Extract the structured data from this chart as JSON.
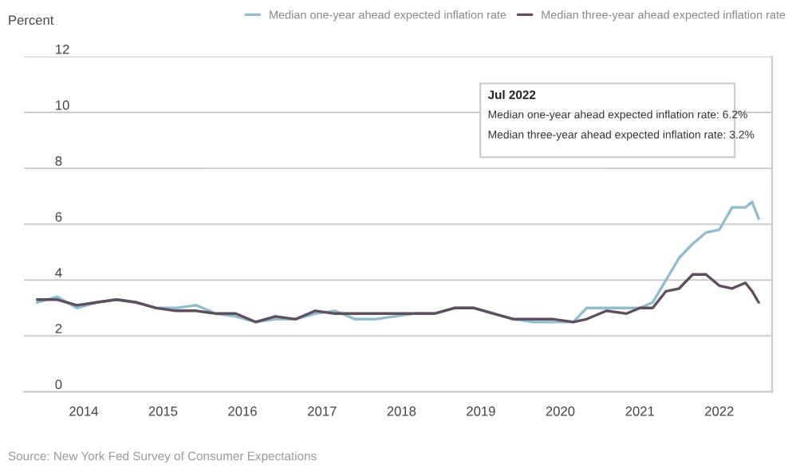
{
  "chart_data": {
    "type": "line",
    "ylabel": "Percent",
    "series": [
      {
        "name": "Median one-year ahead expected inflation rate",
        "color": "#8fbccf",
        "x": [
          "2013-06",
          "2013-09",
          "2013-12",
          "2014-03",
          "2014-06",
          "2014-09",
          "2014-12",
          "2015-03",
          "2015-06",
          "2015-09",
          "2015-12",
          "2016-03",
          "2016-06",
          "2016-09",
          "2016-12",
          "2017-03",
          "2017-06",
          "2017-09",
          "2017-12",
          "2018-03",
          "2018-06",
          "2018-09",
          "2018-12",
          "2019-03",
          "2019-06",
          "2019-09",
          "2019-12",
          "2020-03",
          "2020-05",
          "2020-08",
          "2020-11",
          "2021-01",
          "2021-03",
          "2021-05",
          "2021-07",
          "2021-09",
          "2021-11",
          "2022-01",
          "2022-03",
          "2022-05",
          "2022-06",
          "2022-07"
        ],
        "values": [
          3.2,
          3.4,
          3.0,
          3.2,
          3.3,
          3.2,
          3.0,
          3.0,
          3.1,
          2.8,
          2.7,
          2.5,
          2.6,
          2.6,
          2.8,
          2.9,
          2.6,
          2.6,
          2.7,
          2.8,
          2.8,
          3.0,
          3.0,
          2.8,
          2.6,
          2.5,
          2.5,
          2.5,
          3.0,
          3.0,
          3.0,
          3.0,
          3.2,
          4.0,
          4.8,
          5.3,
          5.7,
          5.8,
          6.6,
          6.6,
          6.8,
          6.2
        ]
      },
      {
        "name": "Median three-year ahead expected inflation rate",
        "color": "#5e4e5e",
        "x": [
          "2013-06",
          "2013-09",
          "2013-12",
          "2014-03",
          "2014-06",
          "2014-09",
          "2014-12",
          "2015-03",
          "2015-06",
          "2015-09",
          "2015-12",
          "2016-03",
          "2016-06",
          "2016-09",
          "2016-12",
          "2017-03",
          "2017-06",
          "2017-09",
          "2017-12",
          "2018-03",
          "2018-06",
          "2018-09",
          "2018-12",
          "2019-03",
          "2019-06",
          "2019-09",
          "2019-12",
          "2020-03",
          "2020-05",
          "2020-08",
          "2020-11",
          "2021-01",
          "2021-03",
          "2021-05",
          "2021-07",
          "2021-09",
          "2021-11",
          "2022-01",
          "2022-03",
          "2022-05",
          "2022-06",
          "2022-07"
        ],
        "values": [
          3.3,
          3.3,
          3.1,
          3.2,
          3.3,
          3.2,
          3.0,
          2.9,
          2.9,
          2.8,
          2.8,
          2.5,
          2.7,
          2.6,
          2.9,
          2.8,
          2.8,
          2.8,
          2.8,
          2.8,
          2.8,
          3.0,
          3.0,
          2.8,
          2.6,
          2.6,
          2.6,
          2.5,
          2.6,
          2.9,
          2.8,
          3.0,
          3.0,
          3.6,
          3.7,
          4.2,
          4.2,
          3.8,
          3.7,
          3.9,
          3.6,
          3.2
        ]
      }
    ],
    "xlim": [
      "2013-04",
      "2022-09"
    ],
    "xticks": [
      "2014",
      "2015",
      "2016",
      "2017",
      "2018",
      "2019",
      "2020",
      "2021",
      "2022"
    ],
    "ylim": [
      0,
      12
    ],
    "yticks": [
      0,
      2,
      4,
      6,
      8,
      10,
      12
    ],
    "grid": "y",
    "legend": "top",
    "annotations": [
      "Jul 2022",
      "Median one-year ahead expected inflation rate: 6.2%",
      "Median three-year ahead expected inflation rate: 3.2%",
      "Source: New York Fed Survey of Consumer Expectations"
    ]
  }
}
